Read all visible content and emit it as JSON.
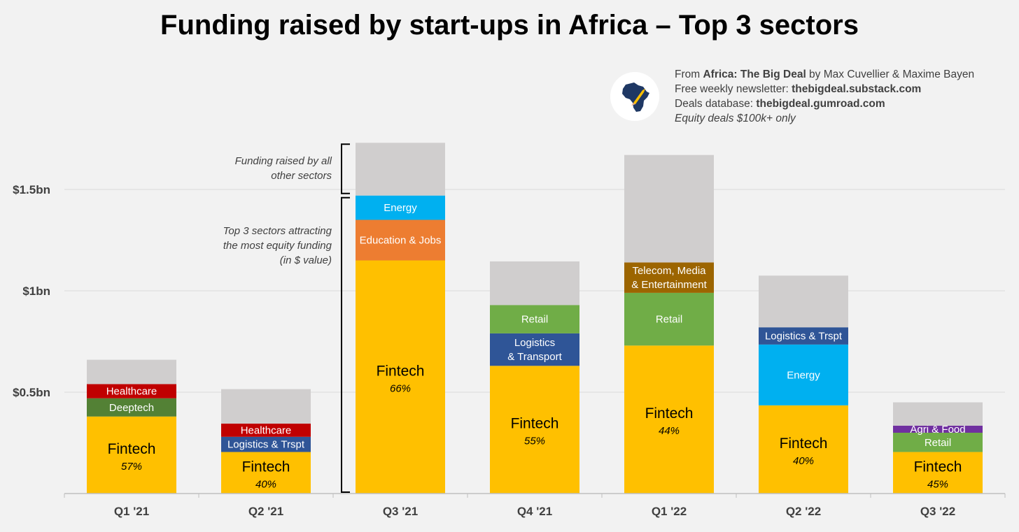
{
  "title": "Funding raised by start-ups in Africa – Top 3 sectors",
  "source": {
    "line1_prefix": "From ",
    "line1_bold": "Africa: The Big Deal",
    "line1_suffix": " by Max Cuvellier & Maxime Bayen",
    "line2_prefix": "Free weekly newsletter: ",
    "line2_bold": "thebigdeal.substack.com",
    "line3_prefix": "Deals database: ",
    "line3_bold": "thebigdeal.gumroad.com",
    "line4": "Equity deals $100k+ only",
    "logo_icon": "africa-rocket-icon"
  },
  "annotations": {
    "others_line1": "Funding raised by all",
    "others_line2": "other sectors",
    "top3_line1": "Top 3 sectors attracting",
    "top3_line2": "the most equity funding",
    "top3_line3": "(in $ value)"
  },
  "chart_data": {
    "type": "bar",
    "stacked": true,
    "title": "Funding raised by start-ups in Africa – Top 3 sectors",
    "ylim": [
      0,
      1.75
    ],
    "yticks": [
      {
        "value": 0.5,
        "label": "$0.5bn"
      },
      {
        "value": 1.0,
        "label": "$1bn"
      },
      {
        "value": 1.5,
        "label": "$1.5bn"
      }
    ],
    "grid": true,
    "categories": [
      "Q1 '21",
      "Q2 '21",
      "Q3 '21",
      "Q4 '21",
      "Q1 '22",
      "Q2 '22",
      "Q3 '22"
    ],
    "colors": {
      "Fintech": "#ffc000",
      "Healthcare": "#c00000",
      "Deeptech": "#538135",
      "Logistics": "#2f5597",
      "Energy": "#00b0f0",
      "Education": "#ed7d31",
      "Retail": "#70ad47",
      "Telecom": "#9c6500",
      "Agri": "#7030a0",
      "Others": "#d0cece"
    },
    "bars": [
      {
        "category": "Q1 '21",
        "segments": [
          {
            "sector": "Fintech",
            "label": "Fintech",
            "share": "57%",
            "value": 0.38,
            "color": "#ffc000"
          },
          {
            "sector": "Deeptech",
            "label": "Deeptech",
            "value": 0.09,
            "color": "#538135"
          },
          {
            "sector": "Healthcare",
            "label": "Healthcare",
            "value": 0.07,
            "color": "#c00000"
          },
          {
            "sector": "Others",
            "label": "",
            "value": 0.12,
            "color": "#d0cece"
          }
        ]
      },
      {
        "category": "Q2 '21",
        "segments": [
          {
            "sector": "Fintech",
            "label": "Fintech",
            "share": "40%",
            "value": 0.205,
            "color": "#ffc000"
          },
          {
            "sector": "Logistics",
            "label": "Logistics & Trspt",
            "value": 0.075,
            "color": "#2f5597"
          },
          {
            "sector": "Healthcare",
            "label": "Healthcare",
            "value": 0.065,
            "color": "#c00000"
          },
          {
            "sector": "Others",
            "label": "",
            "value": 0.17,
            "color": "#d0cece"
          }
        ]
      },
      {
        "category": "Q3 '21",
        "segments": [
          {
            "sector": "Fintech",
            "label": "Fintech",
            "share": "66%",
            "value": 1.15,
            "color": "#ffc000"
          },
          {
            "sector": "Education",
            "label": "Education & Jobs",
            "value": 0.2,
            "color": "#ed7d31"
          },
          {
            "sector": "Energy",
            "label": "Energy",
            "value": 0.12,
            "color": "#00b0f0"
          },
          {
            "sector": "Others",
            "label": "",
            "value": 0.26,
            "color": "#d0cece"
          }
        ]
      },
      {
        "category": "Q4 '21",
        "segments": [
          {
            "sector": "Fintech",
            "label": "Fintech",
            "share": "55%",
            "value": 0.63,
            "color": "#ffc000"
          },
          {
            "sector": "Logistics",
            "label": "Logistics|& Transport",
            "value": 0.16,
            "color": "#2f5597"
          },
          {
            "sector": "Retail",
            "label": "Retail",
            "value": 0.14,
            "color": "#70ad47"
          },
          {
            "sector": "Others",
            "label": "",
            "value": 0.215,
            "color": "#d0cece"
          }
        ]
      },
      {
        "category": "Q1 '22",
        "segments": [
          {
            "sector": "Fintech",
            "label": "Fintech",
            "share": "44%",
            "value": 0.73,
            "color": "#ffc000"
          },
          {
            "sector": "Retail",
            "label": "Retail",
            "value": 0.26,
            "color": "#70ad47"
          },
          {
            "sector": "Telecom",
            "label": "Telecom, Media|& Entertainment",
            "value": 0.15,
            "color": "#9c6500"
          },
          {
            "sector": "Others",
            "label": "",
            "value": 0.53,
            "color": "#d0cece"
          }
        ]
      },
      {
        "category": "Q2 '22",
        "segments": [
          {
            "sector": "Fintech",
            "label": "Fintech",
            "share": "40%",
            "value": 0.435,
            "color": "#ffc000"
          },
          {
            "sector": "Energy",
            "label": "Energy",
            "value": 0.3,
            "color": "#00b0f0"
          },
          {
            "sector": "Logistics",
            "label": "Logistics & Trspt",
            "value": 0.085,
            "color": "#2f5597"
          },
          {
            "sector": "Others",
            "label": "",
            "value": 0.255,
            "color": "#d0cece"
          }
        ]
      },
      {
        "category": "Q3 '22",
        "segments": [
          {
            "sector": "Fintech",
            "label": "Fintech",
            "share": "45%",
            "value": 0.205,
            "color": "#ffc000"
          },
          {
            "sector": "Retail",
            "label": "Retail",
            "value": 0.095,
            "color": "#70ad47"
          },
          {
            "sector": "Agri",
            "label": "Agri & Food",
            "value": 0.035,
            "color": "#7030a0"
          },
          {
            "sector": "Others",
            "label": "",
            "value": 0.115,
            "color": "#d0cece"
          }
        ]
      }
    ]
  }
}
